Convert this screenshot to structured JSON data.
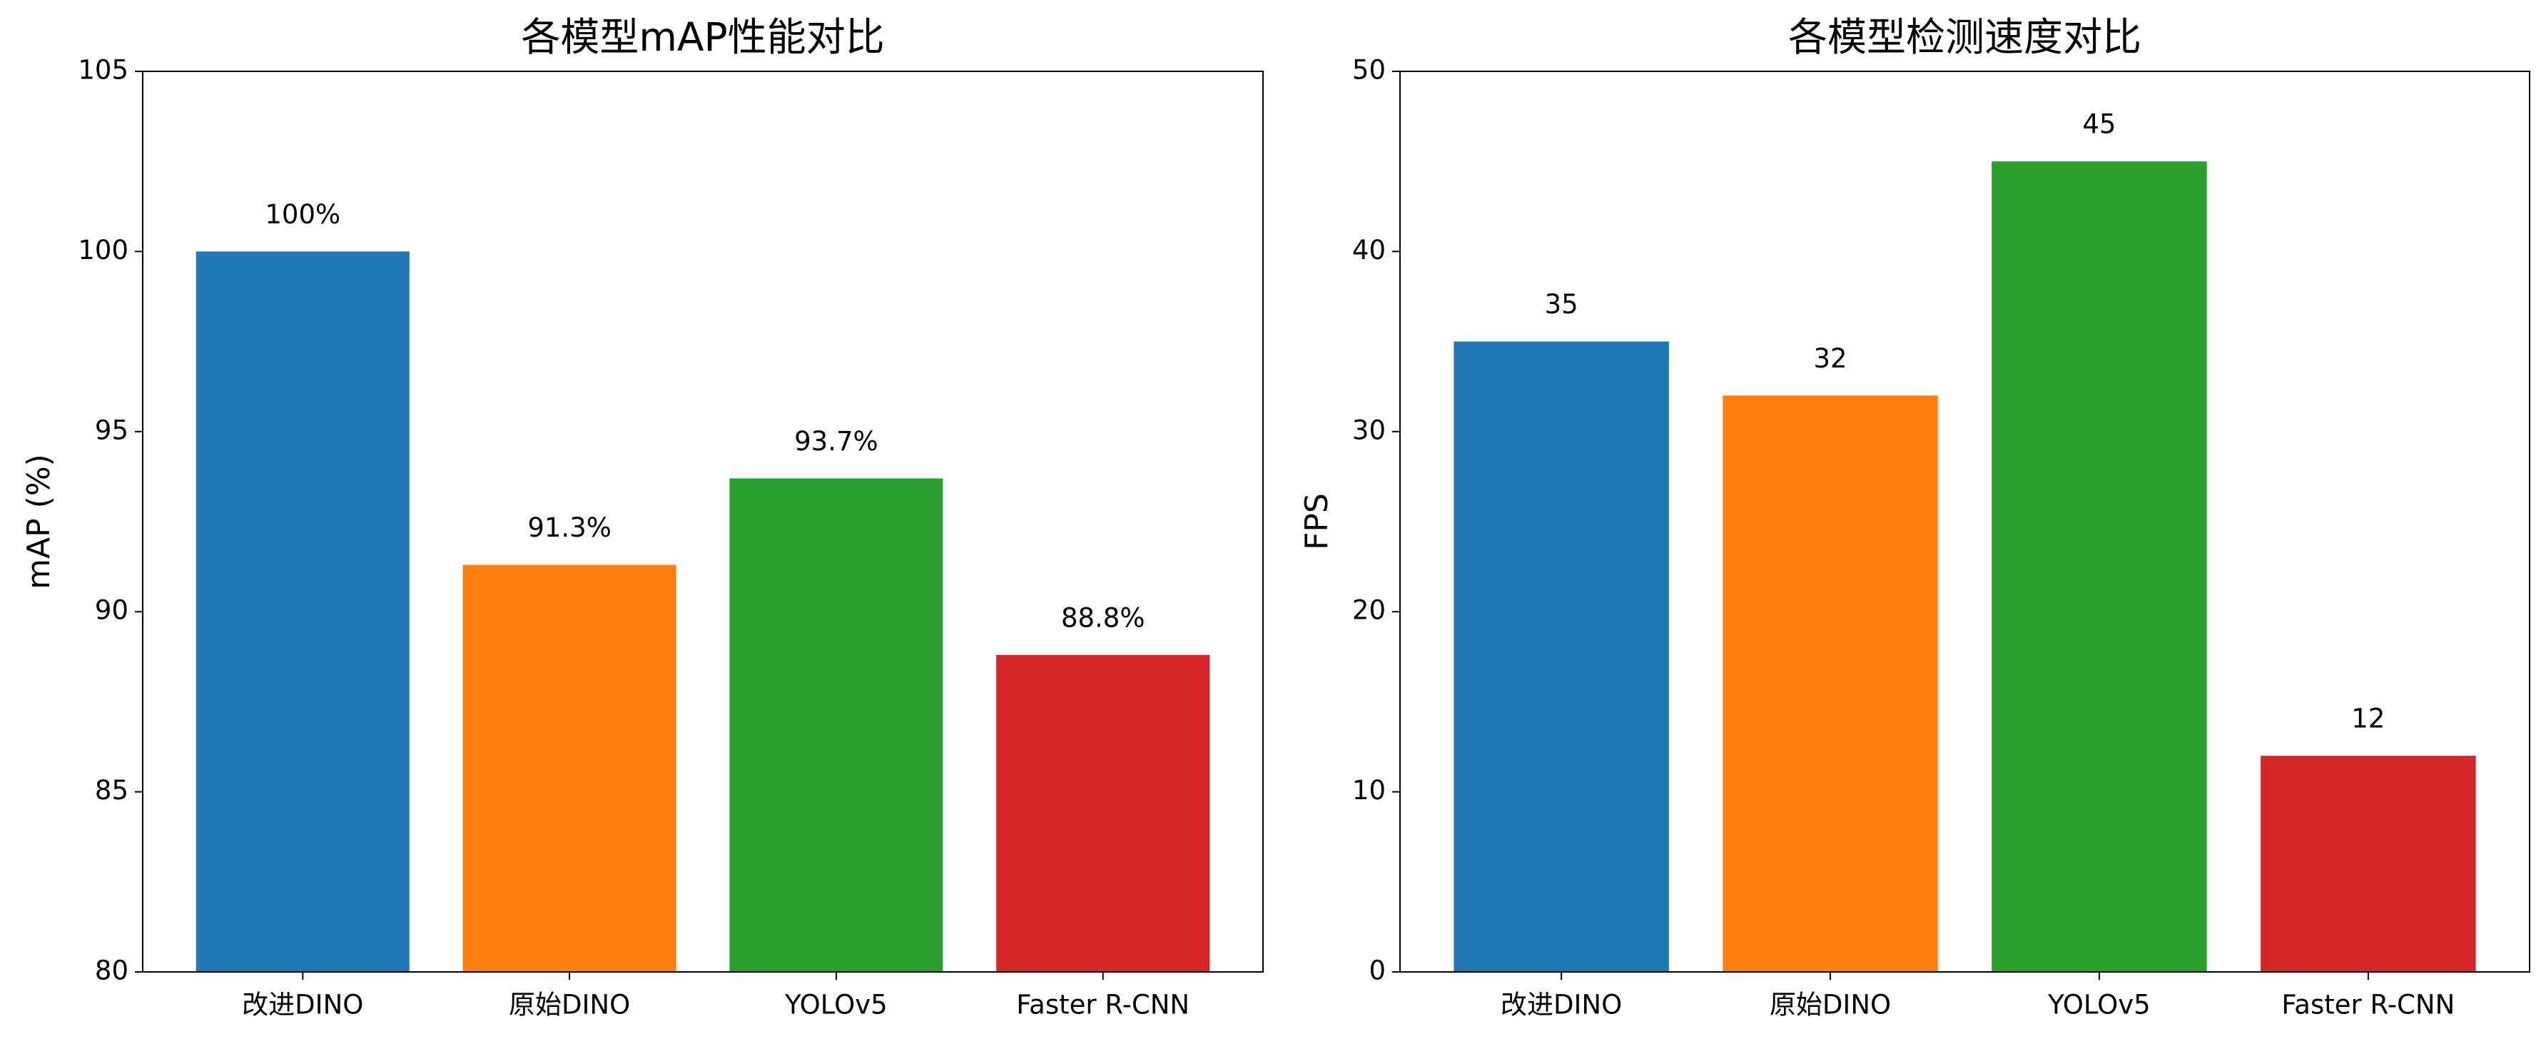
{
  "chart_data": [
    {
      "type": "bar",
      "title": "各模型mAP性能对比",
      "y_label": "mAP (%)",
      "categories": [
        "改进DINO",
        "原始DINO",
        "YOLOv5",
        "Faster R-CNN"
      ],
      "values": [
        100,
        91.3,
        93.7,
        88.8
      ],
      "value_labels": [
        "100%",
        "91.3%",
        "93.7%",
        "88.8%"
      ],
      "colors": [
        "#1f77b4",
        "#ff7f0e",
        "#2ca02c",
        "#d62728"
      ],
      "ylim": [
        80,
        105
      ],
      "yticks": [
        80,
        85,
        90,
        95,
        100,
        105
      ]
    },
    {
      "type": "bar",
      "title": "各模型检测速度对比",
      "y_label": "FPS",
      "categories": [
        "改进DINO",
        "原始DINO",
        "YOLOv5",
        "Faster R-CNN"
      ],
      "values": [
        35,
        32,
        45,
        12
      ],
      "colors": [
        "#1f77b4",
        "#ff7f0e",
        "#2ca02c",
        "#d62728"
      ],
      "ylim": [
        0,
        50
      ],
      "yticks": [
        0,
        10,
        20,
        30,
        40,
        50
      ]
    }
  ]
}
